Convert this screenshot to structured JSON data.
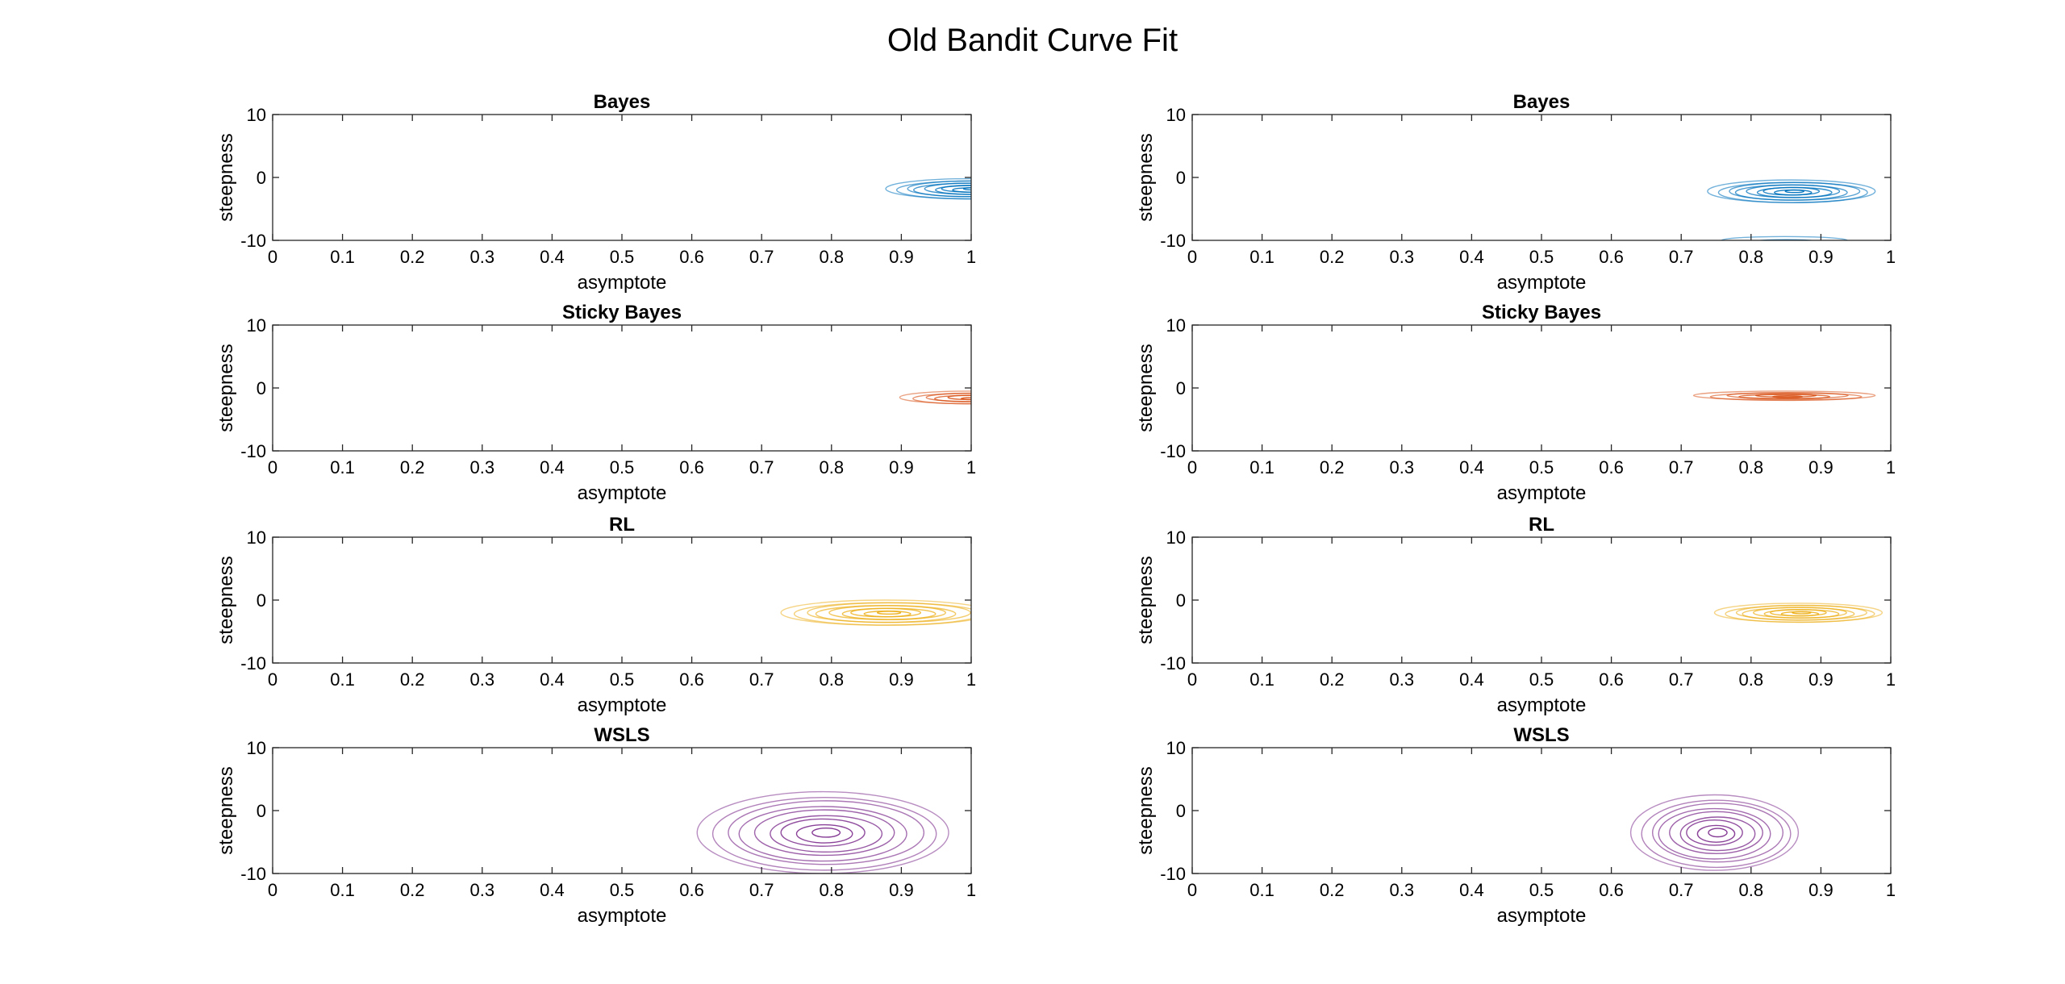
{
  "figure": {
    "title": "Old Bandit Curve Fit"
  },
  "colors": {
    "bayes": "#0072BD",
    "sticky": "#D95319",
    "rl": "#EDB120",
    "wsls": "#7E2F8E",
    "axis": "#262626"
  },
  "chart_data": [
    {
      "type": "contour",
      "title": "Bayes",
      "xlabel": "asymptote",
      "ylabel": "steepness",
      "xlim": [
        0,
        1
      ],
      "ylim": [
        -10,
        10
      ],
      "xticks": [
        "0",
        "0.1",
        "0.2",
        "0.3",
        "0.4",
        "0.5",
        "0.6",
        "0.7",
        "0.8",
        "0.9",
        "1"
      ],
      "yticks": [
        "10",
        "0",
        "-10"
      ],
      "color_key": "bayes",
      "series": [
        {
          "center": [
            1.0,
            -1.8
          ],
          "spread": [
            0.12,
            1.6
          ],
          "levels": 9
        }
      ]
    },
    {
      "type": "contour",
      "title": "Bayes",
      "xlabel": "asymptote",
      "ylabel": "steepness",
      "xlim": [
        0,
        1
      ],
      "ylim": [
        -10,
        10
      ],
      "xticks": [
        "0",
        "0.1",
        "0.2",
        "0.3",
        "0.4",
        "0.5",
        "0.6",
        "0.7",
        "0.8",
        "0.9",
        "1"
      ],
      "yticks": [
        "10",
        "0",
        "-10"
      ],
      "color_key": "bayes",
      "series": [
        {
          "center": [
            0.86,
            -2.2
          ],
          "spread": [
            0.12,
            1.8
          ],
          "levels": 9
        },
        {
          "center": [
            0.85,
            -10.0
          ],
          "spread": [
            0.09,
            0.6
          ],
          "levels": 2
        }
      ]
    },
    {
      "type": "contour",
      "title": "Sticky Bayes",
      "xlabel": "asymptote",
      "ylabel": "steepness",
      "xlim": [
        0,
        1
      ],
      "ylim": [
        -10,
        10
      ],
      "xticks": [
        "0",
        "0.1",
        "0.2",
        "0.3",
        "0.4",
        "0.5",
        "0.6",
        "0.7",
        "0.8",
        "0.9",
        "1"
      ],
      "yticks": [
        "10",
        "0",
        "-10"
      ],
      "color_key": "sticky",
      "series": [
        {
          "center": [
            1.0,
            -1.5
          ],
          "spread": [
            0.1,
            1.0
          ],
          "levels": 6
        }
      ]
    },
    {
      "type": "contour",
      "title": "Sticky Bayes",
      "xlabel": "asymptote",
      "ylabel": "steepness",
      "xlim": [
        0,
        1
      ],
      "ylim": [
        -10,
        10
      ],
      "xticks": [
        "0",
        "0.1",
        "0.2",
        "0.3",
        "0.4",
        "0.5",
        "0.6",
        "0.7",
        "0.8",
        "0.9",
        "1"
      ],
      "yticks": [
        "10",
        "0",
        "-10"
      ],
      "color_key": "sticky",
      "series": [
        {
          "center": [
            0.85,
            -1.2
          ],
          "spread": [
            0.13,
            0.7
          ],
          "levels": 6
        }
      ]
    },
    {
      "type": "contour",
      "title": "RL",
      "xlabel": "asymptote",
      "ylabel": "steepness",
      "xlim": [
        0,
        1
      ],
      "ylim": [
        -10,
        10
      ],
      "xticks": [
        "0",
        "0.1",
        "0.2",
        "0.3",
        "0.4",
        "0.5",
        "0.6",
        "0.7",
        "0.8",
        "0.9",
        "1"
      ],
      "yticks": [
        "10",
        "0",
        "-10"
      ],
      "color_key": "rl",
      "series": [
        {
          "center": [
            0.88,
            -2.0
          ],
          "spread": [
            0.15,
            2.0
          ],
          "levels": 9
        }
      ]
    },
    {
      "type": "contour",
      "title": "RL",
      "xlabel": "asymptote",
      "ylabel": "steepness",
      "xlim": [
        0,
        1
      ],
      "ylim": [
        -10,
        10
      ],
      "xticks": [
        "0",
        "0.1",
        "0.2",
        "0.3",
        "0.4",
        "0.5",
        "0.6",
        "0.7",
        "0.8",
        "0.9",
        "1"
      ],
      "yticks": [
        "10",
        "0",
        "-10"
      ],
      "color_key": "rl",
      "series": [
        {
          "center": [
            0.87,
            -2.0
          ],
          "spread": [
            0.12,
            1.5
          ],
          "levels": 9
        }
      ]
    },
    {
      "type": "contour",
      "title": "WSLS",
      "xlabel": "asymptote",
      "ylabel": "steepness",
      "xlim": [
        0,
        1
      ],
      "ylim": [
        -10,
        10
      ],
      "xticks": [
        "0",
        "0.1",
        "0.2",
        "0.3",
        "0.4",
        "0.5",
        "0.6",
        "0.7",
        "0.8",
        "0.9",
        "1"
      ],
      "yticks": [
        "10",
        "0",
        "-10"
      ],
      "color_key": "wsls",
      "series": [
        {
          "center": [
            0.79,
            -3.5
          ],
          "spread": [
            0.18,
            6.5
          ],
          "levels": 9
        }
      ]
    },
    {
      "type": "contour",
      "title": "WSLS",
      "xlabel": "asymptote",
      "ylabel": "steepness",
      "xlim": [
        0,
        1
      ],
      "ylim": [
        -10,
        10
      ],
      "xticks": [
        "0",
        "0.1",
        "0.2",
        "0.3",
        "0.4",
        "0.5",
        "0.6",
        "0.7",
        "0.8",
        "0.9",
        "1"
      ],
      "yticks": [
        "10",
        "0",
        "-10"
      ],
      "color_key": "wsls",
      "series": [
        {
          "center": [
            0.75,
            -3.5
          ],
          "spread": [
            0.12,
            6.0
          ],
          "levels": 9
        }
      ]
    }
  ]
}
